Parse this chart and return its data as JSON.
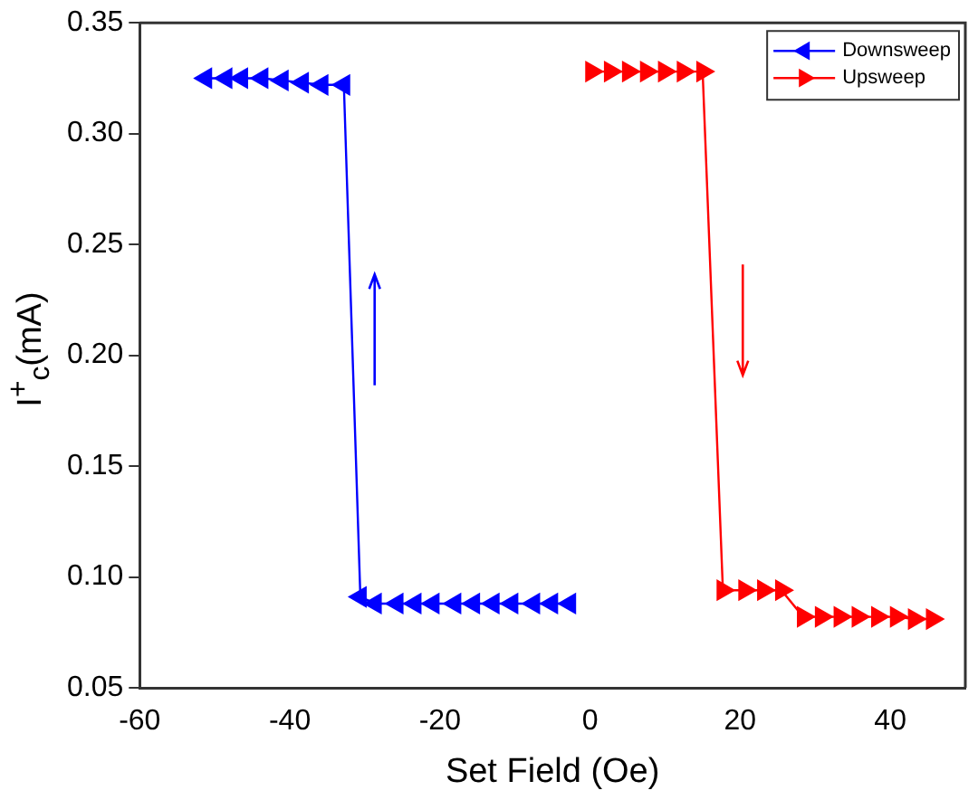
{
  "chart_data": {
    "type": "line",
    "xlabel": "Set Field (Oe)",
    "ylabel": "I$^{+}$$_{c}$(mA)",
    "xlim": [
      -60,
      50
    ],
    "ylim": [
      0.05,
      0.35
    ],
    "xticks": [
      -60,
      -40,
      -20,
      0,
      20,
      40
    ],
    "yticks": [
      {
        "value": 0.05,
        "label": "0.05"
      },
      {
        "value": 0.1,
        "label": "0.10"
      },
      {
        "value": 0.15,
        "label": "0.15"
      },
      {
        "value": 0.2,
        "label": "0.20"
      },
      {
        "value": 0.25,
        "label": "0.25"
      },
      {
        "value": 0.3,
        "label": "0.30"
      },
      {
        "value": 0.35,
        "label": "0.35"
      }
    ],
    "grid": false,
    "legend": "top right",
    "marker": "triangle",
    "series": [
      {
        "name": "Downsweep",
        "color": "#0000ff",
        "x": [
          -2.7,
          -5.1,
          -7.5,
          -10.4,
          -12.9,
          -15.5,
          -18,
          -20.9,
          -23.3,
          -25.7,
          -28.6,
          -30.6,
          -32.8,
          -35.7,
          -38.3,
          -41,
          -43.7,
          -46.4,
          -48.5,
          -51.2
        ],
        "values": [
          0.088,
          0.088,
          0.088,
          0.088,
          0.088,
          0.088,
          0.088,
          0.088,
          0.088,
          0.088,
          0.088,
          0.091,
          0.322,
          0.322,
          0.323,
          0.324,
          0.325,
          0.325,
          0.325,
          0.325
        ]
      },
      {
        "name": "Upsweep",
        "color": "#ff0000",
        "x": [
          0.2,
          2.7,
          5.1,
          7.5,
          9.9,
          12.4,
          15,
          17.7,
          20.6,
          23.1,
          25.5,
          28.4,
          30.8,
          33.3,
          35.7,
          38.3,
          40.8,
          43.2,
          45.6
        ],
        "values": [
          0.328,
          0.328,
          0.328,
          0.328,
          0.328,
          0.328,
          0.328,
          0.094,
          0.094,
          0.094,
          0.094,
          0.082,
          0.082,
          0.082,
          0.082,
          0.082,
          0.082,
          0.081,
          0.081
        ]
      }
    ]
  }
}
